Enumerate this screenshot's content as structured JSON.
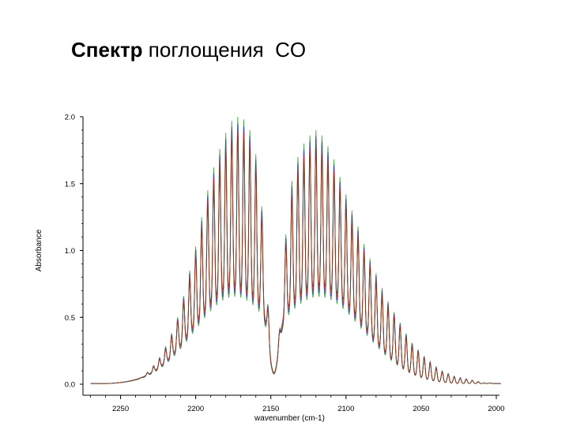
{
  "slide": {
    "title_bold": "Спектр",
    "title_rest": " поглощения  CO"
  },
  "chart_data": {
    "type": "line",
    "xlabel": "wavenumber (cm-1)",
    "ylabel": "Absorbance",
    "xlim": [
      2275,
      2000
    ],
    "ylim": [
      0,
      2.0
    ],
    "x_ticks": [
      "2250",
      "2200",
      "2150",
      "2100",
      "2050",
      "2000"
    ],
    "y_ticks": [
      "0.0",
      "0.5",
      "1.0",
      "1.5",
      "2.0"
    ],
    "grid": false,
    "series_colors": [
      "#2e9e2e",
      "#3a3ab8",
      "#c83030",
      "#7a3a10"
    ],
    "band": {
      "r_branch_peaks": {
        "x": [
          2240,
          2236,
          2232,
          2228,
          2224,
          2220,
          2216,
          2212,
          2208,
          2204,
          2200,
          2196,
          2192,
          2188,
          2184,
          2180,
          2176,
          2172,
          2168,
          2164,
          2160,
          2156,
          2152
        ],
        "y": [
          0.02,
          0.05,
          0.09,
          0.14,
          0.2,
          0.28,
          0.38,
          0.5,
          0.66,
          0.85,
          1.03,
          1.25,
          1.45,
          1.62,
          1.76,
          1.88,
          1.97,
          2.0,
          1.98,
          1.9,
          1.72,
          1.33,
          0.6
        ]
      },
      "p_branch_peaks": {
        "x": [
          2144,
          2140,
          2136,
          2132,
          2128,
          2124,
          2120,
          2116,
          2112,
          2108,
          2104,
          2100,
          2096,
          2092,
          2088,
          2084,
          2080,
          2076,
          2072,
          2068,
          2064,
          2060,
          2056,
          2052,
          2048,
          2044,
          2040,
          2036,
          2032,
          2028,
          2024,
          2020,
          2016,
          2012,
          2008,
          2004,
          2000
        ],
        "y": [
          0.42,
          1.12,
          1.52,
          1.7,
          1.8,
          1.86,
          1.9,
          1.86,
          1.78,
          1.68,
          1.55,
          1.42,
          1.3,
          1.18,
          1.05,
          0.94,
          0.83,
          0.72,
          0.62,
          0.54,
          0.46,
          0.38,
          0.31,
          0.26,
          0.21,
          0.17,
          0.13,
          0.1,
          0.08,
          0.06,
          0.05,
          0.04,
          0.03,
          0.02,
          0.01,
          0.01,
          0.0
        ]
      },
      "envelope_max": 0.7,
      "band_gap_min": 0.08
    }
  }
}
